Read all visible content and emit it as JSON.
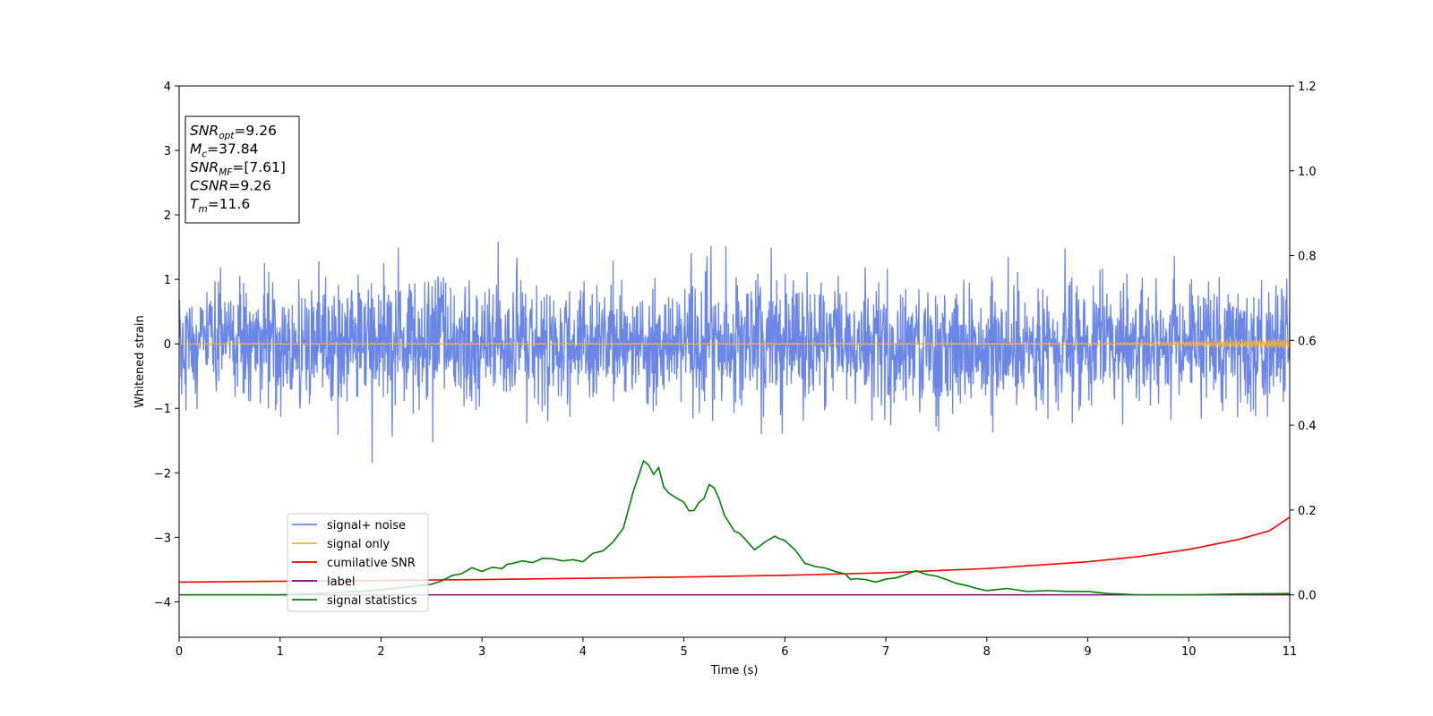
{
  "chart_data": {
    "type": "line",
    "xlabel": "Time (s)",
    "ylabel": "Whitened strain",
    "xlim": [
      0,
      11
    ],
    "ylim_left": [
      -4.55,
      4.0
    ],
    "ylim_right": [
      -0.1,
      1.2
    ],
    "x_ticks": [
      0,
      1,
      2,
      3,
      4,
      5,
      6,
      7,
      8,
      9,
      10,
      11
    ],
    "y_ticks_left": [
      -4,
      -3,
      -2,
      -1,
      0,
      1,
      2,
      3,
      4
    ],
    "y_tick_labels_left": [
      "−4",
      "−3",
      "−2",
      "−1",
      "0",
      "1",
      "2",
      "3",
      "4"
    ],
    "y_ticks_right": [
      0.0,
      0.2,
      0.4,
      0.6,
      0.8,
      1.0,
      1.2
    ],
    "y_tick_labels_right": [
      "0.0",
      "0.2",
      "0.4",
      "0.6",
      "0.8",
      "1.0",
      "1.2"
    ],
    "grid": false,
    "legend_position": "lower-left",
    "info_box": [
      {
        "sym": "SNR",
        "sub": "opt",
        "val": "=9.26"
      },
      {
        "sym": "M",
        "sub": "c",
        "val": "=37.84"
      },
      {
        "sym": "SNR",
        "sub": "MF",
        "val": "=[7.61]"
      },
      {
        "sym": "CSNR",
        "sub": "",
        "val": "=9.26"
      },
      {
        "sym": "T",
        "sub": "m",
        "val": "=11.6"
      }
    ],
    "series": [
      {
        "name": "signal+ noise",
        "axis": "left",
        "color": "#6a86e6",
        "kind": "noise",
        "amplitude_range": [
          -1.85,
          1.78
        ]
      },
      {
        "name": "signal only",
        "axis": "left",
        "color": "#f5b041",
        "kind": "chirp",
        "x": [
          0,
          9,
          10,
          10.5,
          11
        ],
        "amplitude": [
          0.003,
          0.005,
          0.03,
          0.05,
          0.07
        ]
      },
      {
        "name": "cumilative SNR",
        "axis": "right",
        "color": "#ff0000",
        "x": [
          0,
          1,
          2,
          3,
          4,
          5,
          6,
          7,
          8,
          9,
          9.5,
          10,
          10.5,
          10.8,
          11
        ],
        "y": [
          0.03,
          0.032,
          0.034,
          0.036,
          0.039,
          0.042,
          0.046,
          0.052,
          0.062,
          0.078,
          0.09,
          0.107,
          0.131,
          0.151,
          0.183
        ]
      },
      {
        "name": "label",
        "axis": "right",
        "color": "#800080",
        "x": [
          0,
          11
        ],
        "y": [
          0.0,
          0.0
        ]
      },
      {
        "name": "signal statistics",
        "axis": "right",
        "color": "#008000",
        "x": [
          0,
          1,
          1.5,
          1.8,
          2.0,
          2.2,
          2.5,
          2.6,
          2.7,
          2.8,
          2.9,
          3.0,
          3.1,
          3.2,
          3.25,
          3.3,
          3.4,
          3.5,
          3.6,
          3.7,
          3.8,
          3.9,
          4.0,
          4.1,
          4.2,
          4.3,
          4.4,
          4.5,
          4.55,
          4.6,
          4.65,
          4.7,
          4.75,
          4.8,
          4.85,
          4.9,
          5.0,
          5.05,
          5.1,
          5.15,
          5.2,
          5.25,
          5.3,
          5.35,
          5.4,
          5.5,
          5.55,
          5.6,
          5.7,
          5.8,
          5.9,
          5.95,
          6.0,
          6.1,
          6.2,
          6.3,
          6.4,
          6.5,
          6.6,
          6.65,
          6.7,
          6.8,
          6.9,
          7.0,
          7.1,
          7.2,
          7.3,
          7.4,
          7.5,
          7.6,
          7.7,
          7.8,
          7.9,
          8.0,
          8.2,
          8.4,
          8.6,
          8.8,
          9.0,
          9.2,
          9.5,
          10.0,
          10.5,
          11.0
        ],
        "y": [
          0.0,
          0.0,
          0.005,
          0.008,
          0.012,
          0.017,
          0.025,
          0.033,
          0.045,
          0.05,
          0.064,
          0.055,
          0.065,
          0.062,
          0.072,
          0.074,
          0.08,
          0.076,
          0.086,
          0.085,
          0.08,
          0.083,
          0.078,
          0.098,
          0.104,
          0.125,
          0.157,
          0.245,
          0.28,
          0.316,
          0.306,
          0.284,
          0.3,
          0.254,
          0.24,
          0.232,
          0.218,
          0.198,
          0.199,
          0.218,
          0.228,
          0.26,
          0.252,
          0.225,
          0.188,
          0.15,
          0.145,
          0.133,
          0.106,
          0.124,
          0.138,
          0.132,
          0.128,
          0.106,
          0.074,
          0.067,
          0.063,
          0.055,
          0.049,
          0.036,
          0.038,
          0.036,
          0.03,
          0.037,
          0.04,
          0.048,
          0.057,
          0.048,
          0.044,
          0.036,
          0.027,
          0.022,
          0.015,
          0.01,
          0.015,
          0.008,
          0.01,
          0.008,
          0.008,
          0.003,
          0.0,
          0.0,
          0.002,
          0.003
        ]
      }
    ]
  }
}
